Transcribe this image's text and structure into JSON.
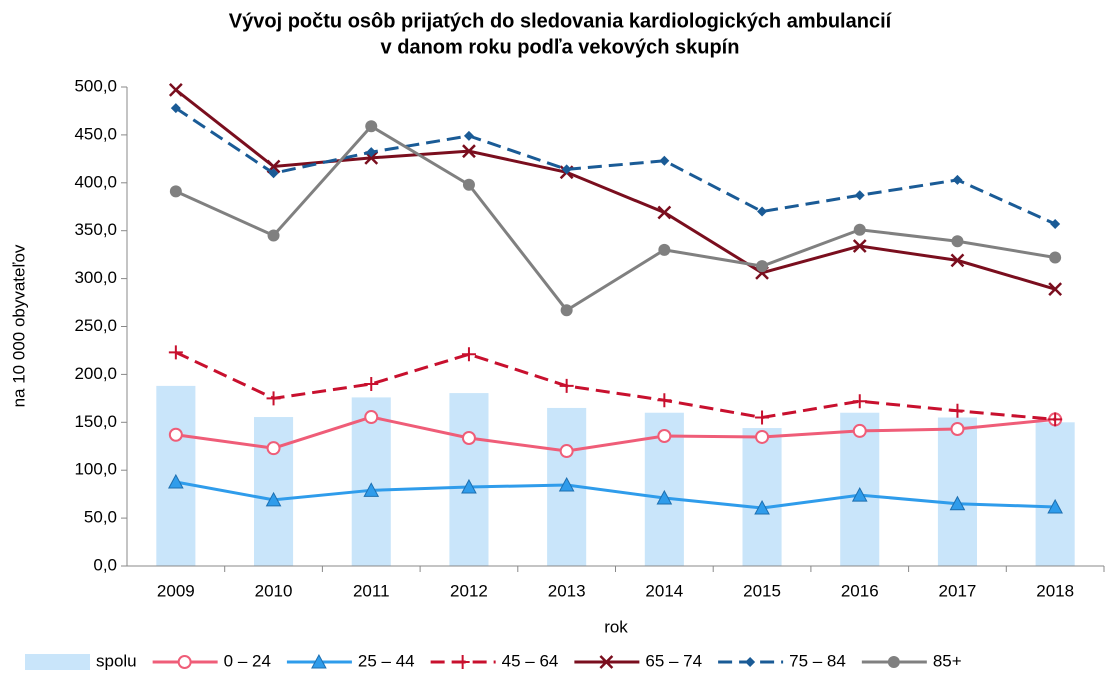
{
  "chart_data": {
    "type": "line",
    "title": [
      "Vývoj počtu osôb prijatých do sledovania kardiologických ambulancií",
      "v danom roku podľa vekových skupín"
    ],
    "xlabel": "rok",
    "ylabel": "na 10 000 obyvateľov",
    "categories": [
      "2009",
      "2010",
      "2011",
      "2012",
      "2013",
      "2014",
      "2015",
      "2016",
      "2017",
      "2018"
    ],
    "ylim": [
      0,
      500
    ],
    "yticks": [
      {
        "value": 0,
        "label": "0,0"
      },
      {
        "value": 50,
        "label": "50,0"
      },
      {
        "value": 100,
        "label": "100,0"
      },
      {
        "value": 150,
        "label": "150,0"
      },
      {
        "value": 200,
        "label": "200,0"
      },
      {
        "value": 250,
        "label": "250,0"
      },
      {
        "value": 300,
        "label": "300,0"
      },
      {
        "value": 350,
        "label": "350,0"
      },
      {
        "value": 400,
        "label": "400,0"
      },
      {
        "value": 450,
        "label": "450,0"
      },
      {
        "value": 500,
        "label": "500,0"
      }
    ],
    "legend": "bottom",
    "series": [
      {
        "name": "spolu",
        "type": "bar",
        "color": "#c9e5fa",
        "values": [
          188,
          155.5,
          176,
          180.5,
          165,
          160,
          144,
          160,
          155,
          150
        ]
      },
      {
        "name": "0 – 24",
        "type": "line",
        "color": "#ef5d78",
        "marker": "circle-open",
        "dashed": false,
        "values": [
          137,
          123,
          155.5,
          133.6,
          120,
          135.7,
          134.7,
          141,
          143,
          153
        ]
      },
      {
        "name": "25 – 44",
        "type": "line",
        "color": "#2f9ceb",
        "marker": "triangle",
        "dashed": false,
        "values": [
          87.7,
          69,
          79,
          82.5,
          84.5,
          71,
          60.5,
          74,
          65,
          61.6
        ]
      },
      {
        "name": "45 – 64",
        "type": "line",
        "color": "#c8102e",
        "marker": "plus",
        "dashed": true,
        "values": [
          223,
          175,
          190,
          221,
          188,
          173,
          155,
          172,
          162,
          153
        ]
      },
      {
        "name": "65 – 74",
        "type": "line",
        "color": "#7a0e1e",
        "marker": "x",
        "dashed": false,
        "values": [
          497,
          417,
          426,
          433,
          411,
          369,
          306,
          334,
          319,
          289
        ]
      },
      {
        "name": "75 – 84",
        "type": "line",
        "color": "#1a5b96",
        "marker": "diamond",
        "dashed": true,
        "values": [
          478,
          410,
          432,
          449,
          414,
          423,
          370,
          387,
          403,
          357
        ]
      },
      {
        "name": "85+",
        "type": "line",
        "color": "#808080",
        "marker": "circle",
        "dashed": false,
        "values": [
          391,
          345,
          459,
          398,
          267,
          330,
          313,
          351,
          339,
          322
        ]
      }
    ]
  }
}
